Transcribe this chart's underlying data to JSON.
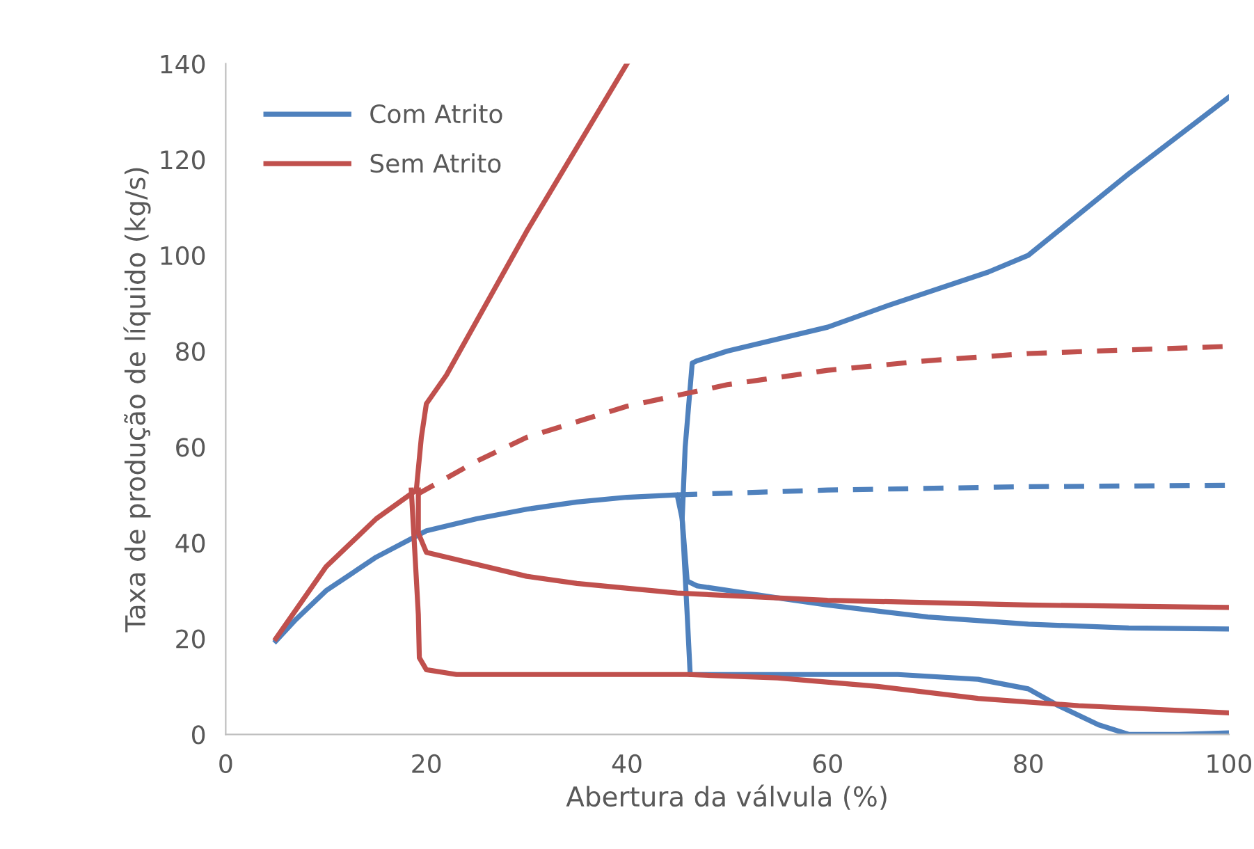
{
  "chart_data": {
    "type": "line",
    "xlabel": "Abertura da válvula (%)",
    "ylabel": "Taxa de produção de líquido (kg/s)",
    "xlim": [
      0,
      100
    ],
    "xticks": [
      0,
      20,
      40,
      60,
      80,
      100
    ],
    "ylim": [
      0,
      140
    ],
    "yticks": [
      0,
      20,
      40,
      60,
      80,
      100,
      120,
      140
    ],
    "grid": false,
    "legend": "top left",
    "marker": "none",
    "series": [
      {
        "name": "Com Atrito",
        "color": "#4f81bd",
        "line_style": "solid",
        "x": [
          5,
          7,
          10,
          15,
          20,
          25,
          30,
          35,
          40,
          45,
          45.5,
          46,
          47,
          55,
          60,
          70,
          80,
          90,
          100
        ],
        "values": [
          19.5,
          24,
          30,
          37,
          42.5,
          45,
          47,
          48.5,
          49.5,
          50,
          45,
          32,
          31,
          28.5,
          27,
          24.5,
          23,
          22.2,
          22
        ]
      },
      {
        "name": "Sem Atrito",
        "color": "#c0504d",
        "line_style": "solid",
        "x": [
          5,
          10,
          15,
          18,
          19,
          19.5,
          20,
          22,
          30,
          40
        ],
        "values": [
          20,
          35,
          45,
          49.5,
          51,
          62,
          69,
          75,
          105,
          140
        ]
      },
      {
        "color": "#4f81bd",
        "line_style": "solid",
        "x": [
          100,
          90,
          80,
          76,
          66,
          60,
          50,
          47,
          46.5,
          45.8,
          45.5,
          46,
          46.3,
          55,
          67,
          75,
          80,
          83,
          87,
          90,
          95,
          100
        ],
        "values": [
          133,
          117,
          100,
          96.5,
          89.5,
          85,
          80,
          78,
          77.5,
          60,
          45,
          25,
          12.5,
          12.5,
          12.5,
          11.5,
          9.5,
          6,
          2,
          0,
          0,
          0.3
        ]
      },
      {
        "color": "#4f81bd",
        "line_style": "dashed",
        "x": [
          45,
          60,
          80,
          100
        ],
        "values": [
          50,
          51,
          51.7,
          52
        ]
      },
      {
        "color": "#c0504d",
        "line_style": "solid",
        "x": [
          19.2,
          19.2,
          20,
          24,
          30,
          35,
          45,
          60,
          80,
          100
        ],
        "values": [
          51,
          42,
          38,
          36,
          33,
          31.5,
          29.5,
          28,
          27,
          26.5
        ]
      },
      {
        "color": "#c0504d",
        "line_style": "solid",
        "x": [
          18.5,
          18.8,
          19.2,
          19.3,
          20,
          23,
          30,
          46,
          55,
          65,
          75,
          85,
          100
        ],
        "values": [
          51,
          40,
          25,
          16,
          13.5,
          12.5,
          12.5,
          12.5,
          11.8,
          10,
          7.5,
          6,
          4.5
        ]
      },
      {
        "color": "#c0504d",
        "line_style": "dashed",
        "x": [
          19,
          25,
          30,
          40,
          50,
          60,
          70,
          80,
          100
        ],
        "values": [
          50,
          57,
          62,
          68.5,
          73,
          76,
          78,
          79.5,
          81
        ]
      }
    ]
  }
}
